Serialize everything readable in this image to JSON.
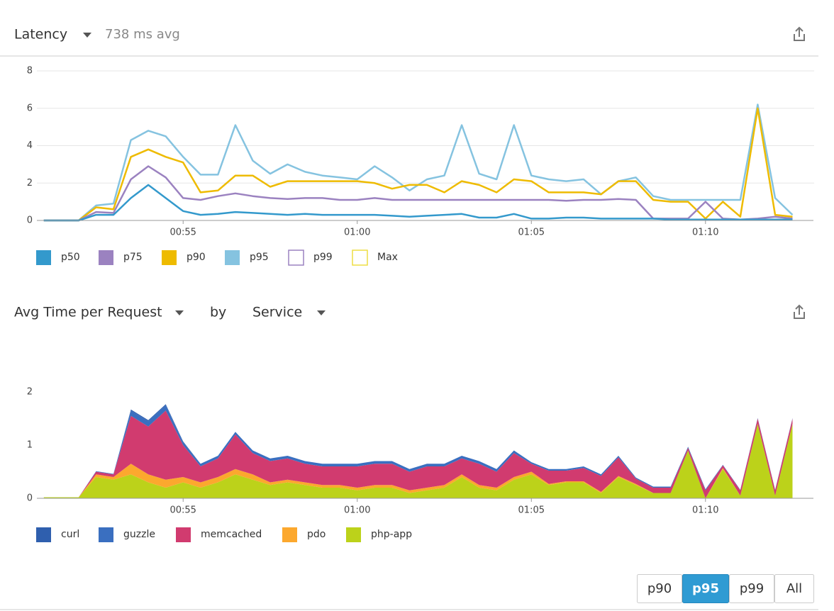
{
  "chart_data": [
    {
      "type": "line",
      "title": "Latency",
      "subtitle": "738 ms avg",
      "x": [
        51,
        51.5,
        52,
        52.5,
        53,
        53.5,
        54,
        54.5,
        55,
        55.5,
        56,
        56.5,
        57,
        57.5,
        58,
        58.5,
        59,
        59.5,
        60,
        60.5,
        61,
        61.5,
        62,
        62.5,
        63,
        63.5,
        64,
        64.5,
        65,
        65.5,
        66,
        66.5,
        67,
        67.5,
        68,
        68.5,
        69,
        69.5,
        70,
        70.5,
        71,
        71.5,
        72,
        72.5
      ],
      "xlim": [
        50.8,
        73.1
      ],
      "xticks": [
        {
          "value": 55,
          "label": "00:55"
        },
        {
          "value": 60,
          "label": "01:00"
        },
        {
          "value": 65,
          "label": "01:05"
        },
        {
          "value": 70,
          "label": "01:10"
        }
      ],
      "ylim": [
        0,
        8
      ],
      "yticks": [
        0,
        2,
        4,
        6,
        8
      ],
      "grid": true,
      "series": [
        {
          "name": "p50",
          "color": "#3399cc",
          "values": [
            0,
            0,
            0,
            0.3,
            0.3,
            1.2,
            1.9,
            1.2,
            0.5,
            0.3,
            0.35,
            0.45,
            0.4,
            0.35,
            0.3,
            0.35,
            0.3,
            0.3,
            0.3,
            0.3,
            0.25,
            0.2,
            0.25,
            0.3,
            0.35,
            0.15,
            0.15,
            0.35,
            0.1,
            0.1,
            0.15,
            0.15,
            0.1,
            0.1,
            0.1,
            0.1,
            0.05,
            0.05,
            0.05,
            0.05,
            0.05,
            0.05,
            0.05,
            0.05
          ]
        },
        {
          "name": "p75",
          "color": "#9b82c0",
          "values": [
            0,
            0,
            0,
            0.45,
            0.4,
            2.2,
            2.9,
            2.3,
            1.2,
            1.1,
            1.3,
            1.45,
            1.3,
            1.2,
            1.15,
            1.2,
            1.2,
            1.1,
            1.1,
            1.2,
            1.1,
            1.1,
            1.1,
            1.1,
            1.1,
            1.1,
            1.1,
            1.1,
            1.1,
            1.1,
            1.05,
            1.1,
            1.1,
            1.15,
            1.1,
            0.1,
            0.1,
            0.1,
            1.0,
            0.1,
            0.05,
            0.1,
            0.2,
            0.1
          ]
        },
        {
          "name": "p90",
          "color": "#eebb00",
          "values": [
            0,
            0,
            0,
            0.7,
            0.6,
            3.4,
            3.8,
            3.4,
            3.1,
            1.5,
            1.6,
            2.4,
            2.4,
            1.8,
            2.1,
            2.1,
            2.1,
            2.1,
            2.1,
            2.0,
            1.7,
            1.9,
            1.9,
            1.5,
            2.1,
            1.9,
            1.5,
            2.2,
            2.1,
            1.5,
            1.5,
            1.5,
            1.4,
            2.1,
            2.1,
            1.1,
            1.0,
            1.0,
            0.1,
            1.0,
            0.2,
            6.0,
            0.3,
            0.2
          ]
        },
        {
          "name": "p95",
          "color": "#85c3e0",
          "values": [
            0,
            0,
            0,
            0.8,
            0.9,
            4.3,
            4.8,
            4.5,
            3.4,
            2.45,
            2.45,
            5.1,
            3.2,
            2.5,
            3.0,
            2.6,
            2.4,
            2.3,
            2.2,
            2.9,
            2.3,
            1.6,
            2.2,
            2.4,
            5.1,
            2.5,
            2.2,
            5.1,
            2.4,
            2.2,
            2.1,
            2.2,
            1.4,
            2.1,
            2.3,
            1.3,
            1.1,
            1.1,
            1.1,
            1.1,
            1.1,
            6.2,
            1.2,
            0.3
          ]
        },
        {
          "name": "p99",
          "color": "#9b82c0",
          "hidden": true
        },
        {
          "name": "Max",
          "color": "#eedd44",
          "hidden": true
        }
      ]
    },
    {
      "type": "stacked_area",
      "title": "Avg Time per Request",
      "group_by_label": "by",
      "group_by": "Service",
      "x": [
        51,
        51.5,
        52,
        52.5,
        53,
        53.5,
        54,
        54.5,
        55,
        55.5,
        56,
        56.5,
        57,
        57.5,
        58,
        58.5,
        59,
        59.5,
        60,
        60.5,
        61,
        61.5,
        62,
        62.5,
        63,
        63.5,
        64,
        64.5,
        65,
        65.5,
        66,
        66.5,
        67,
        67.5,
        68,
        68.5,
        69,
        69.5,
        70,
        70.5,
        71,
        71.5,
        72,
        72.5
      ],
      "xlim": [
        50.8,
        73.1
      ],
      "xticks": [
        {
          "value": 55,
          "label": "00:55"
        },
        {
          "value": 60,
          "label": "01:00"
        },
        {
          "value": 65,
          "label": "01:05"
        },
        {
          "value": 70,
          "label": "01:10"
        }
      ],
      "ylim": [
        0,
        2.6
      ],
      "yticks": [
        0,
        1,
        2
      ],
      "grid": false,
      "series": [
        {
          "name": "curl",
          "color": "#2f5fae",
          "values": [
            0,
            0,
            0,
            0,
            0,
            0.02,
            0.02,
            0.02,
            0.02,
            0,
            0,
            0,
            0,
            0,
            0,
            0,
            0,
            0,
            0,
            0,
            0,
            0,
            0,
            0,
            0,
            0,
            0,
            0,
            0,
            0,
            0,
            0,
            0,
            0,
            0,
            0,
            0,
            0,
            0,
            0,
            0,
            0,
            0,
            0
          ]
        },
        {
          "name": "guzzle",
          "color": "#3a6fc0",
          "values": [
            0,
            0,
            0,
            0.01,
            0.01,
            0.1,
            0.1,
            0.1,
            0.05,
            0.05,
            0.05,
            0.05,
            0.05,
            0.05,
            0.05,
            0.05,
            0.05,
            0.05,
            0.05,
            0.05,
            0.05,
            0.05,
            0.05,
            0.05,
            0.05,
            0.05,
            0.05,
            0.05,
            0.03,
            0.03,
            0.03,
            0.03,
            0.03,
            0.03,
            0.02,
            0.02,
            0.02,
            0.02,
            0.02,
            0.01,
            0.01,
            0.01,
            0.01,
            0.01
          ]
        },
        {
          "name": "memcached",
          "color": "#d13b6f",
          "values": [
            0,
            0,
            0,
            0.05,
            0.05,
            0.9,
            0.9,
            1.3,
            0.6,
            0.3,
            0.35,
            0.65,
            0.4,
            0.4,
            0.4,
            0.35,
            0.35,
            0.35,
            0.4,
            0.4,
            0.4,
            0.35,
            0.4,
            0.35,
            0.3,
            0.4,
            0.3,
            0.45,
            0.15,
            0.25,
            0.2,
            0.25,
            0.3,
            0.35,
            0.1,
            0.1,
            0.1,
            0.05,
            0.15,
            0.05,
            0.1,
            0.1,
            0.1,
            0.1
          ]
        },
        {
          "name": "pdo",
          "color": "#fca82e",
          "values": [
            0,
            0,
            0,
            0.05,
            0.05,
            0.2,
            0.15,
            0.15,
            0.1,
            0.1,
            0.1,
            0.1,
            0.1,
            0.05,
            0.05,
            0.05,
            0.05,
            0.05,
            0.05,
            0.05,
            0.05,
            0.05,
            0.05,
            0.05,
            0.05,
            0.05,
            0.05,
            0.05,
            0.05,
            0.02,
            0.02,
            0.02,
            0.02,
            0.02,
            0.02,
            0,
            0,
            0,
            0,
            0.02,
            0,
            0,
            0,
            0
          ]
        },
        {
          "name": "php-app",
          "color": "#bcd21a",
          "values": [
            0.02,
            0.02,
            0.02,
            0.4,
            0.35,
            0.45,
            0.3,
            0.2,
            0.3,
            0.2,
            0.3,
            0.45,
            0.35,
            0.25,
            0.3,
            0.25,
            0.2,
            0.2,
            0.15,
            0.2,
            0.2,
            0.1,
            0.15,
            0.2,
            0.4,
            0.2,
            0.15,
            0.35,
            0.45,
            0.25,
            0.3,
            0.3,
            0.1,
            0.4,
            0.25,
            0.1,
            0.1,
            0.9,
            0,
            0.55,
            0.05,
            1.4,
            0.05,
            1.4
          ]
        }
      ]
    }
  ],
  "buttons": [
    "p90",
    "p95",
    "p99",
    "All"
  ],
  "active_button": 1
}
